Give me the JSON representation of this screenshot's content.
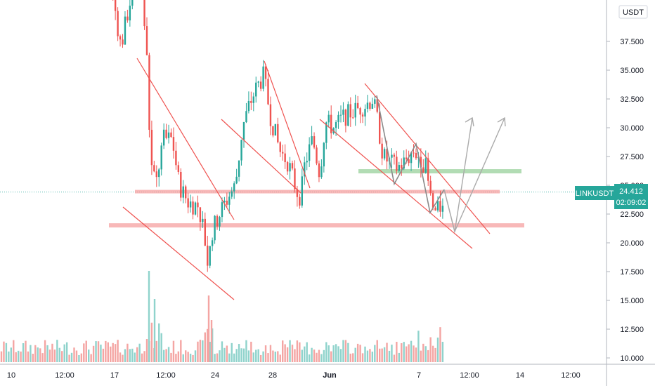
{
  "chart_data": {
    "type": "candlestick",
    "symbol": "LINKUSDT",
    "currency": "USDT",
    "last_price": "24.412",
    "countdown": "02:09:02",
    "ylim": [
      9.6,
      46.0
    ],
    "y_ticks": [
      "10.000",
      "12.500",
      "15.000",
      "17.500",
      "20.000",
      "22.500",
      "25.000",
      "27.500",
      "30.000",
      "32.500",
      "35.000",
      "37.500"
    ],
    "x_ticks": [
      {
        "label": "10",
        "bold": false
      },
      {
        "label": "12:00",
        "bold": false
      },
      {
        "label": "17",
        "bold": false
      },
      {
        "label": "12:00",
        "bold": false
      },
      {
        "label": "24",
        "bold": false
      },
      {
        "label": "28",
        "bold": false
      },
      {
        "label": "Jun",
        "bold": true
      },
      {
        "label": "7",
        "bold": false
      },
      {
        "label": "12:00",
        "bold": false
      },
      {
        "label": "14",
        "bold": false
      },
      {
        "label": "12:00",
        "bold": false
      }
    ],
    "colors": {
      "up": "#26a69a",
      "down": "#ef5350",
      "trend": "#ef5350",
      "support": "#f5a0a0",
      "resistance": "#a5d6a7",
      "projection": "#9e9e9e",
      "badge": "#26a69a"
    },
    "support_levels": [
      24.4,
      21.5
    ],
    "resistance_levels": [
      26.2
    ]
  }
}
